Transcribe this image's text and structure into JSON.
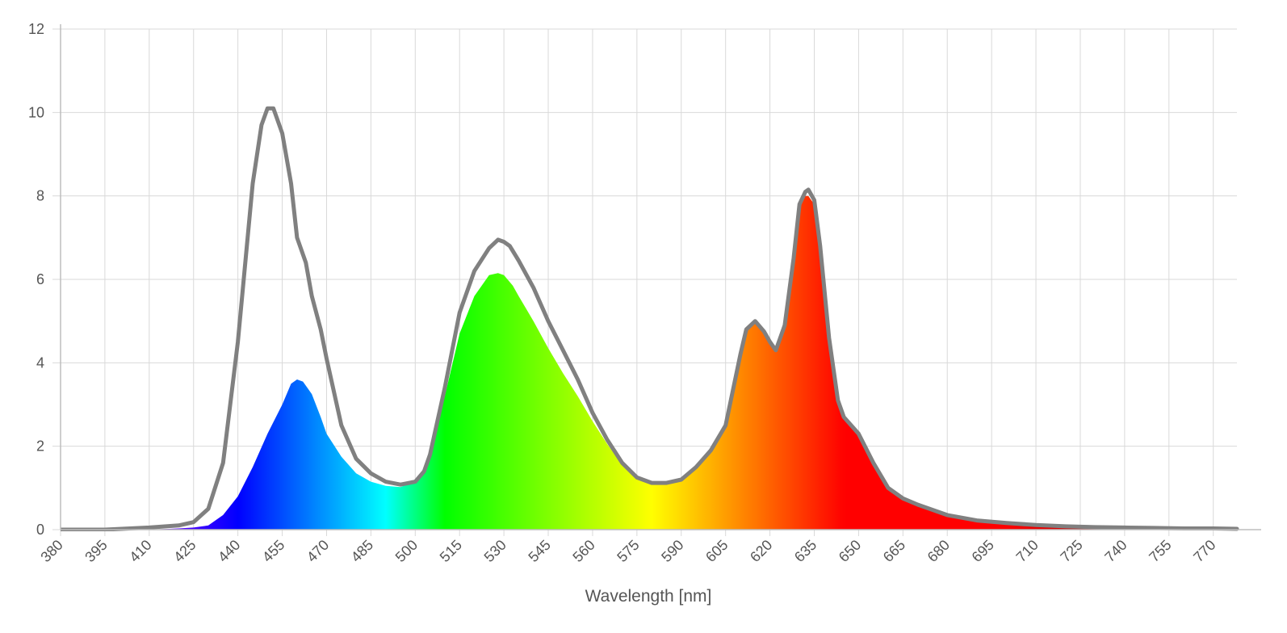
{
  "chart_data": {
    "type": "area",
    "title": "",
    "xlabel": "Wavelength [nm]",
    "ylabel": "",
    "xlim": [
      380,
      778
    ],
    "ylim": [
      0,
      12
    ],
    "y_ticks": [
      "0",
      "2",
      "4",
      "6",
      "8",
      "10",
      "12"
    ],
    "x_ticks": [
      "380",
      "395",
      "410",
      "425",
      "440",
      "455",
      "470",
      "485",
      "500",
      "515",
      "530",
      "545",
      "560",
      "575",
      "590",
      "605",
      "620",
      "635",
      "650",
      "665",
      "680",
      "695",
      "710",
      "725",
      "740",
      "755",
      "770"
    ],
    "grid": true,
    "legend": "none",
    "series": [
      {
        "style": "gray outline",
        "color": "#808080",
        "x": [
          380,
          395,
          410,
          420,
          425,
          430,
          435,
          440,
          445,
          448,
          450,
          452,
          455,
          458,
          460,
          463,
          465,
          468,
          470,
          475,
          480,
          485,
          490,
          495,
          500,
          503,
          505,
          510,
          515,
          520,
          525,
          528,
          530,
          532,
          535,
          540,
          545,
          550,
          555,
          560,
          565,
          570,
          575,
          580,
          585,
          590,
          595,
          600,
          605,
          610,
          612,
          615,
          618,
          620,
          622,
          625,
          628,
          630,
          632,
          633,
          635,
          637,
          640,
          643,
          645,
          650,
          655,
          660,
          665,
          670,
          680,
          690,
          700,
          710,
          720,
          730,
          740,
          750,
          760,
          770,
          778
        ],
        "values": [
          0,
          0,
          0.05,
          0.1,
          0.18,
          0.5,
          1.6,
          4.5,
          8.3,
          9.7,
          10.1,
          10.1,
          9.5,
          8.3,
          7.0,
          6.4,
          5.6,
          4.8,
          4.1,
          2.5,
          1.7,
          1.35,
          1.15,
          1.08,
          1.15,
          1.4,
          1.8,
          3.4,
          5.2,
          6.2,
          6.75,
          6.95,
          6.9,
          6.8,
          6.45,
          5.8,
          5.0,
          4.3,
          3.6,
          2.8,
          2.15,
          1.6,
          1.25,
          1.12,
          1.12,
          1.2,
          1.5,
          1.9,
          2.5,
          4.2,
          4.8,
          5.0,
          4.75,
          4.5,
          4.3,
          4.9,
          6.5,
          7.8,
          8.1,
          8.15,
          7.9,
          6.8,
          4.6,
          3.1,
          2.7,
          2.3,
          1.6,
          1.0,
          0.75,
          0.6,
          0.35,
          0.22,
          0.16,
          0.11,
          0.08,
          0.06,
          0.05,
          0.04,
          0.03,
          0.03,
          0.02
        ]
      },
      {
        "style": "spectrum fill",
        "x": [
          380,
          395,
          410,
          420,
          425,
          430,
          435,
          440,
          445,
          450,
          455,
          458,
          460,
          462,
          465,
          468,
          470,
          475,
          480,
          485,
          490,
          495,
          500,
          503,
          505,
          510,
          515,
          520,
          525,
          528,
          530,
          533,
          535,
          540,
          545,
          550,
          555,
          560,
          565,
          570,
          575,
          580,
          585,
          590,
          595,
          600,
          605,
          610,
          612,
          615,
          618,
          620,
          622,
          625,
          628,
          630,
          632,
          633,
          635,
          637,
          640,
          643,
          645,
          650,
          655,
          660,
          665,
          670,
          680,
          690,
          700,
          710,
          720,
          730,
          740,
          750,
          760,
          770,
          778
        ],
        "values": [
          0,
          0,
          0,
          0.03,
          0.05,
          0.1,
          0.35,
          0.8,
          1.5,
          2.3,
          3.0,
          3.5,
          3.6,
          3.55,
          3.25,
          2.7,
          2.3,
          1.75,
          1.35,
          1.15,
          1.05,
          1.02,
          1.15,
          1.4,
          1.8,
          3.2,
          4.7,
          5.6,
          6.1,
          6.15,
          6.1,
          5.85,
          5.6,
          5.0,
          4.35,
          3.75,
          3.2,
          2.6,
          2.05,
          1.55,
          1.22,
          1.12,
          1.12,
          1.2,
          1.5,
          1.9,
          2.5,
          4.2,
          4.8,
          4.95,
          4.75,
          4.5,
          4.3,
          4.9,
          6.5,
          7.7,
          8.0,
          8.0,
          7.8,
          6.8,
          4.6,
          3.1,
          2.7,
          2.3,
          1.6,
          1.0,
          0.75,
          0.6,
          0.35,
          0.22,
          0.16,
          0.11,
          0.08,
          0.06,
          0.05,
          0.04,
          0.03,
          0.03,
          0.02
        ]
      }
    ]
  }
}
